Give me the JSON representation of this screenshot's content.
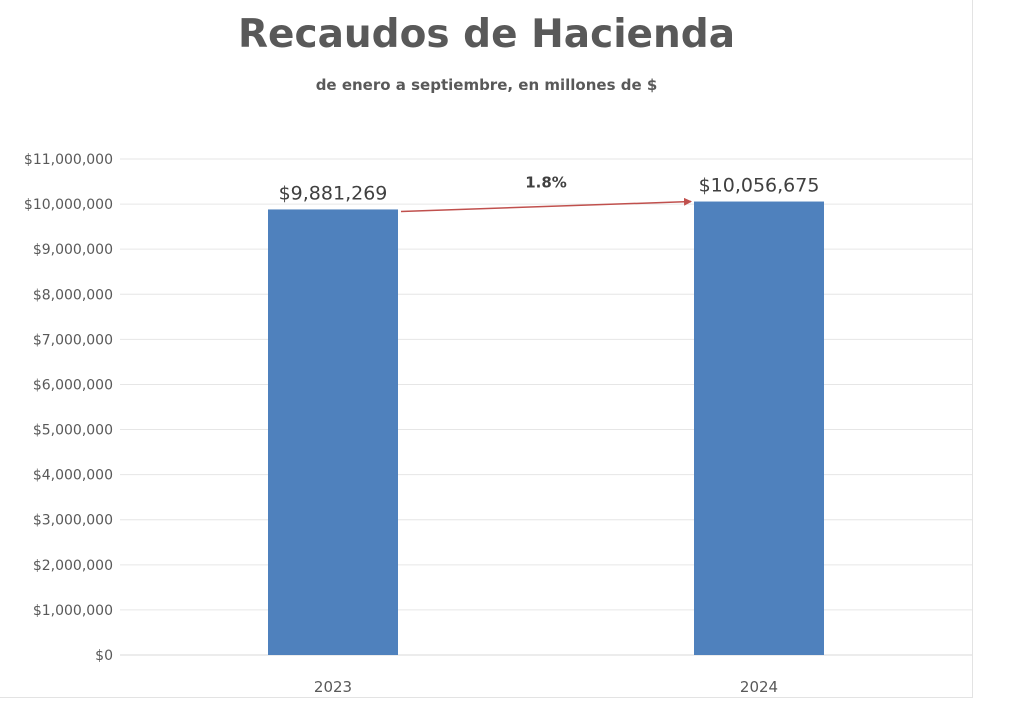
{
  "chart_data": {
    "type": "bar",
    "title": "Recaudos de Hacienda",
    "subtitle": "de enero a septiembre, en millones de $",
    "categories": [
      "2023",
      "2024"
    ],
    "values": [
      9881269,
      10056675
    ],
    "data_labels": [
      "$9,881,269",
      "$10,056,675"
    ],
    "ylim": [
      0,
      11000000
    ],
    "y_ticks": [
      0,
      1000000,
      2000000,
      3000000,
      4000000,
      5000000,
      6000000,
      7000000,
      8000000,
      9000000,
      10000000,
      11000000
    ],
    "y_tick_labels": [
      "$0",
      "$1,000,000",
      "$2,000,000",
      "$3,000,000",
      "$4,000,000",
      "$5,000,000",
      "$6,000,000",
      "$7,000,000",
      "$8,000,000",
      "$9,000,000",
      "$10,000,000",
      "$11,000,000"
    ],
    "grid": true,
    "legend": "none",
    "annotation": {
      "text": "1.8%",
      "type": "arrow",
      "from_category": "2023",
      "to_category": "2024"
    },
    "colors": {
      "bar": "#4f81bd",
      "arrow": "#c0504d",
      "grid": "#e6e6e6",
      "text": "#595959"
    }
  }
}
